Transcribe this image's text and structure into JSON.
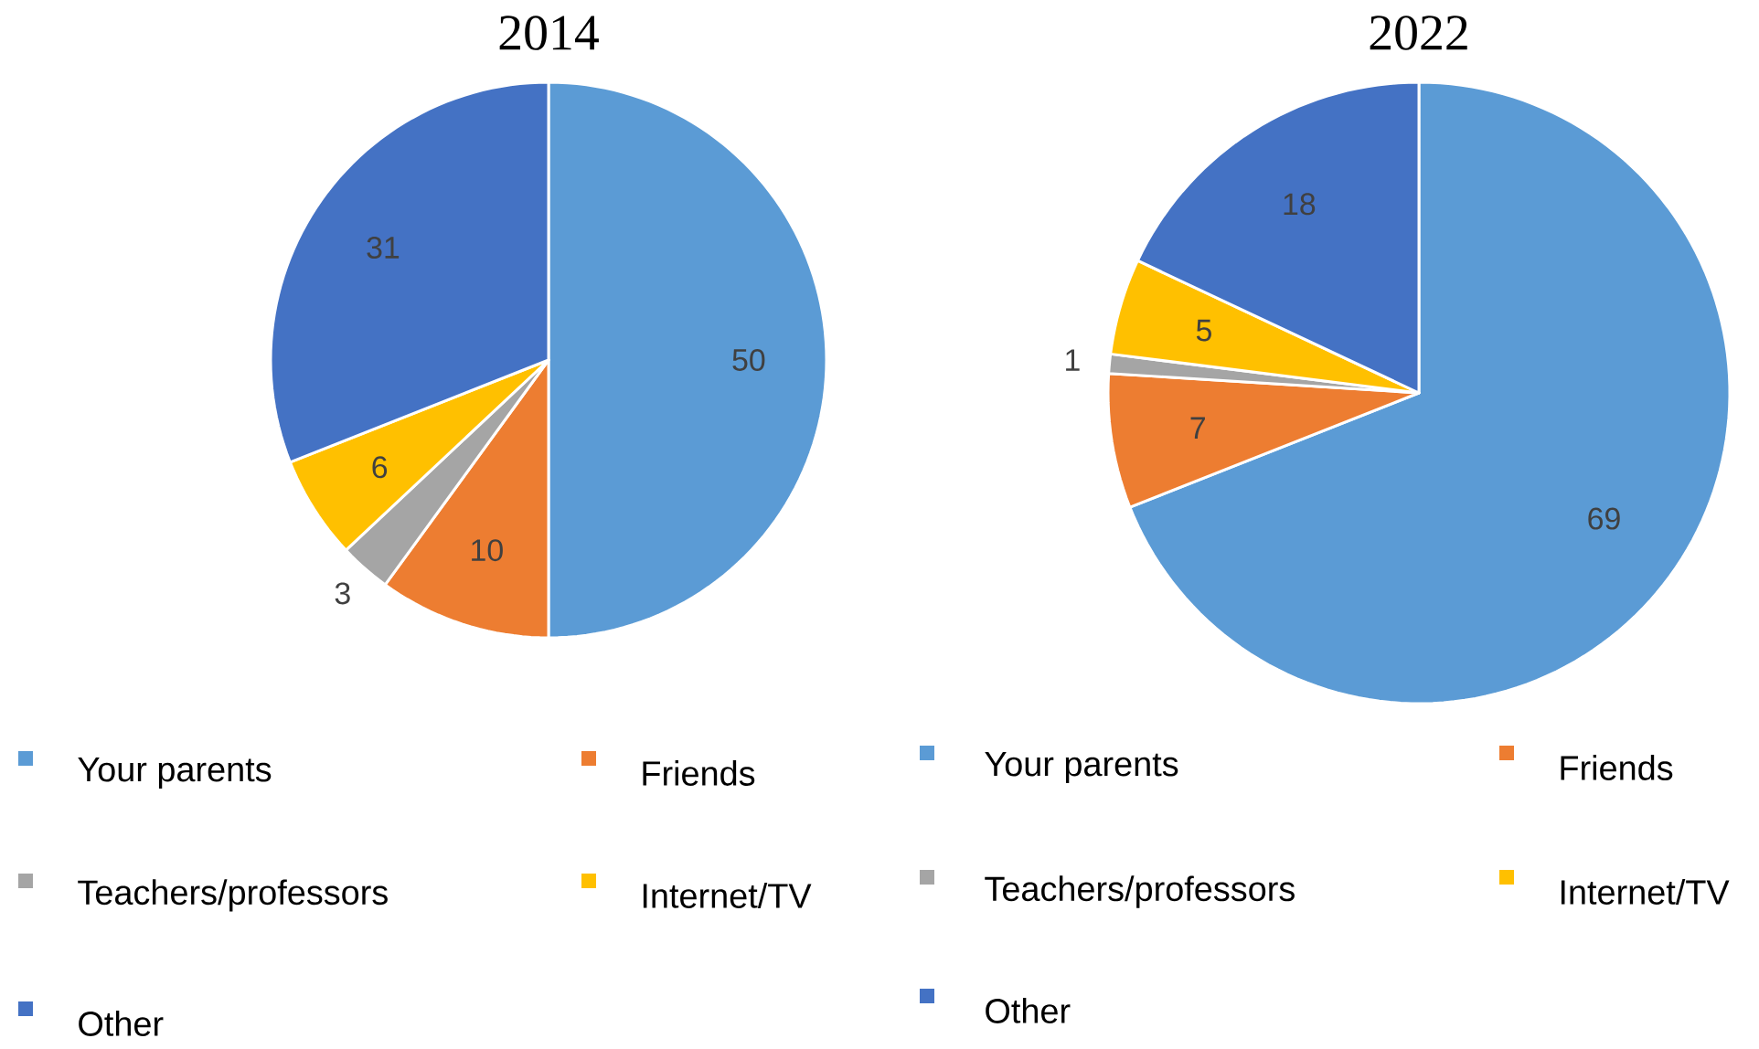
{
  "chart_data": [
    {
      "type": "pie",
      "title": "2014",
      "categories": [
        "Your parents",
        "Friends",
        "Teachers/professors",
        "Internet/TV",
        "Other"
      ],
      "values": [
        50,
        10,
        3,
        6,
        31
      ],
      "colors": [
        "#5b9bd5",
        "#ed7d31",
        "#a5a5a5",
        "#ffc000",
        "#4472c4"
      ],
      "data_labels": true,
      "legend": "bottom"
    },
    {
      "type": "pie",
      "title": "2022",
      "categories": [
        "Your parents",
        "Friends",
        "Teachers/professors",
        "Internet/TV",
        "Other"
      ],
      "values": [
        69,
        7,
        1,
        5,
        18
      ],
      "colors": [
        "#5b9bd5",
        "#ed7d31",
        "#a5a5a5",
        "#ffc000",
        "#4472c4"
      ],
      "data_labels": true,
      "legend": "bottom"
    }
  ]
}
